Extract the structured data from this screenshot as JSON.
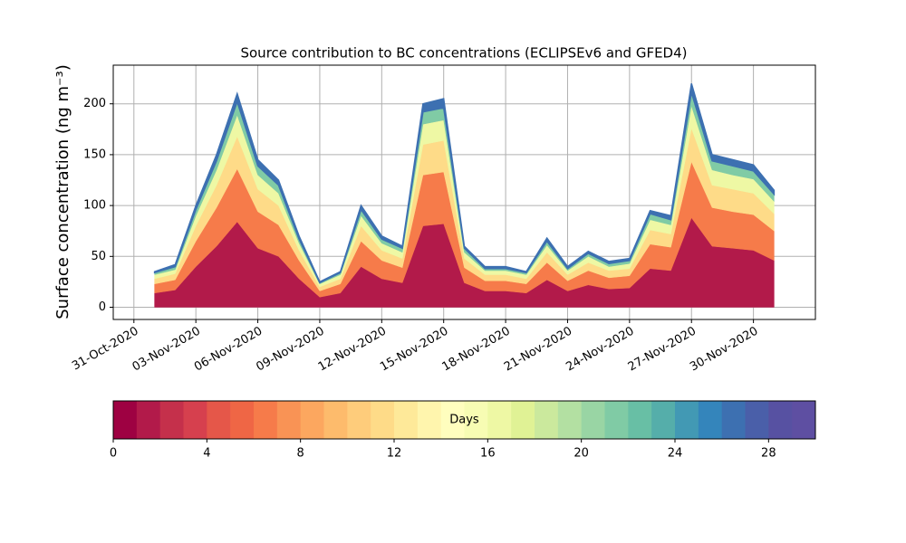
{
  "chart_data": {
    "type": "stacked-area",
    "title": "Source contribution to BC concentrations (ECLIPSEv6 and GFED4)",
    "y_label": "Surface concentration (ng m⁻³)",
    "x": [
      "2020-11-01",
      "2020-11-02",
      "2020-11-03",
      "2020-11-04",
      "2020-11-05",
      "2020-11-06",
      "2020-11-07",
      "2020-11-08",
      "2020-11-09",
      "2020-11-10",
      "2020-11-11",
      "2020-11-12",
      "2020-11-13",
      "2020-11-14",
      "2020-11-15",
      "2020-11-16",
      "2020-11-17",
      "2020-11-18",
      "2020-11-19",
      "2020-11-20",
      "2020-11-21",
      "2020-11-22",
      "2020-11-23",
      "2020-11-24",
      "2020-11-25",
      "2020-11-26",
      "2020-11-27",
      "2020-11-28",
      "2020-11-29",
      "2020-11-30",
      "2020-12-01"
    ],
    "series": [
      {
        "color": "#b21a4a",
        "values": [
          14,
          17,
          40,
          60,
          84,
          58,
          50,
          28,
          10,
          14,
          40,
          28,
          24,
          80,
          82,
          24,
          16,
          16,
          14,
          27,
          16,
          22,
          18,
          19,
          38,
          36,
          88,
          60,
          58,
          56,
          46
        ]
      },
      {
        "color": "#f67b4a",
        "values": [
          9,
          10,
          25,
          38,
          52,
          36,
          31,
          18,
          6,
          9,
          25,
          18,
          15,
          50,
          51,
          15,
          10,
          10,
          9,
          17,
          10,
          14,
          11,
          12,
          24,
          23,
          55,
          38,
          36,
          35,
          29
        ]
      },
      {
        "color": "#fedb88",
        "values": [
          5,
          6,
          15,
          22,
          32,
          22,
          19,
          10,
          4,
          5,
          15,
          10,
          9,
          30,
          31,
          9,
          6,
          6,
          5,
          10,
          6,
          8,
          7,
          7,
          14,
          13,
          33,
          22,
          22,
          21,
          17
        ]
      },
      {
        "color": "#eef8a4",
        "values": [
          4,
          4,
          10,
          15,
          21,
          14,
          12,
          7,
          3,
          4,
          10,
          7,
          6,
          20,
          20,
          6,
          4,
          4,
          4,
          7,
          4,
          6,
          4,
          5,
          10,
          9,
          22,
          15,
          14,
          14,
          12
        ]
      },
      {
        "color": "#80cba5",
        "values": [
          2,
          3,
          6,
          9,
          13,
          9,
          8,
          4,
          1,
          2,
          6,
          4,
          4,
          12,
          12,
          4,
          2,
          2,
          2,
          4,
          2,
          3,
          3,
          3,
          6,
          5,
          13,
          9,
          9,
          8,
          7
        ]
      },
      {
        "color": "#3d70b1",
        "values": [
          1,
          2,
          4,
          6,
          8,
          6,
          5,
          3,
          1,
          1,
          4,
          3,
          2,
          8,
          9,
          2,
          2,
          2,
          1,
          3,
          2,
          2,
          2,
          2,
          3,
          4,
          9,
          6,
          6,
          6,
          4
        ]
      }
    ],
    "xlim": [
      "2020-10-30",
      "2020-12-03"
    ],
    "xticks": [
      {
        "value": "2020-10-31",
        "label": "31-Oct-2020"
      },
      {
        "value": "2020-11-03",
        "label": "03-Nov-2020"
      },
      {
        "value": "2020-11-06",
        "label": "06-Nov-2020"
      },
      {
        "value": "2020-11-09",
        "label": "09-Nov-2020"
      },
      {
        "value": "2020-11-12",
        "label": "12-Nov-2020"
      },
      {
        "value": "2020-11-15",
        "label": "15-Nov-2020"
      },
      {
        "value": "2020-11-18",
        "label": "18-Nov-2020"
      },
      {
        "value": "2020-11-21",
        "label": "21-Nov-2020"
      },
      {
        "value": "2020-11-24",
        "label": "24-Nov-2020"
      },
      {
        "value": "2020-11-27",
        "label": "27-Nov-2020"
      },
      {
        "value": "2020-11-30",
        "label": "30-Nov-2020"
      }
    ],
    "ylim": [
      -12,
      238
    ],
    "yticks": [
      0,
      50,
      100,
      150,
      200
    ],
    "grid": true,
    "colorbar": {
      "label": "Days",
      "lim": [
        0,
        30
      ],
      "ticks": [
        0,
        4,
        8,
        12,
        16,
        20,
        24,
        28
      ],
      "colors": [
        "#9e0142",
        "#b21a4a",
        "#c5304b",
        "#d6404e",
        "#e55749",
        "#ef6645",
        "#f67b4a",
        "#f99355",
        "#fca75f",
        "#fdbb6c",
        "#fecc7b",
        "#fedb88",
        "#fee999",
        "#fff5ad",
        "#fffebe",
        "#f7fcb3",
        "#eef8a4",
        "#e0f295",
        "#cbe99d",
        "#b3e0a2",
        "#99d5a4",
        "#80cba5",
        "#68bfa5",
        "#55aeaa",
        "#4299b4",
        "#3485bb",
        "#3d70b1",
        "#4a5fa9",
        "#5751a2",
        "#5e4fa2"
      ]
    }
  }
}
